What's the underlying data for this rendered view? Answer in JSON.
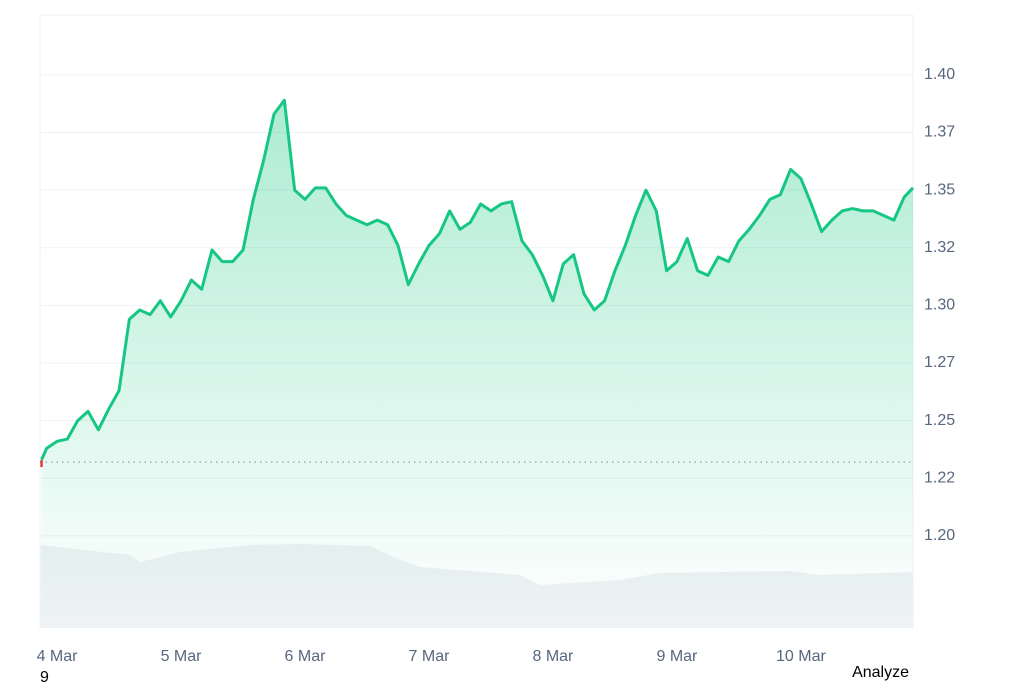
{
  "chart_data": {
    "type": "line",
    "series": [
      {
        "color": "#16c784",
        "x": [
          -3,
          -2,
          0,
          2,
          4,
          6,
          8,
          10,
          12,
          14,
          16,
          18,
          20,
          22,
          24,
          26,
          28,
          30,
          32,
          34,
          36,
          38,
          40,
          42,
          44,
          46,
          48,
          50,
          52,
          54,
          56,
          58,
          60,
          62,
          64,
          66,
          68,
          70,
          72,
          74,
          76,
          78,
          80,
          82,
          84,
          86,
          88,
          90,
          92,
          94,
          96,
          98,
          100,
          102,
          104,
          106,
          108,
          110,
          112,
          114,
          116,
          118,
          120,
          122,
          124,
          126,
          128,
          130,
          132,
          134,
          136,
          138,
          140,
          142,
          144,
          146,
          148,
          150,
          152,
          154,
          156,
          158,
          160,
          162,
          164,
          165.7
        ],
        "values": [
          1.233,
          1.238,
          1.241,
          1.242,
          1.25,
          1.254,
          1.246,
          1.255,
          1.263,
          1.294,
          1.298,
          1.296,
          1.302,
          1.295,
          1.302,
          1.311,
          1.307,
          1.324,
          1.319,
          1.319,
          1.324,
          1.346,
          1.363,
          1.383,
          1.389,
          1.35,
          1.346,
          1.351,
          1.351,
          1.344,
          1.339,
          1.337,
          1.335,
          1.337,
          1.335,
          1.326,
          1.309,
          1.318,
          1.326,
          1.331,
          1.341,
          1.333,
          1.336,
          1.344,
          1.341,
          1.344,
          1.345,
          1.328,
          1.322,
          1.313,
          1.302,
          1.318,
          1.322,
          1.305,
          1.298,
          1.302,
          1.315,
          1.326,
          1.339,
          1.35,
          1.341,
          1.315,
          1.319,
          1.329,
          1.315,
          1.313,
          1.321,
          1.319,
          1.328,
          1.333,
          1.339,
          1.346,
          1.348,
          1.359,
          1.355,
          1.344,
          1.332,
          1.337,
          1.341,
          1.342,
          1.341,
          1.341,
          1.339,
          1.337,
          1.347,
          1.351
        ]
      }
    ],
    "baseline": 1.232,
    "volume": {
      "color": "#eff2f5",
      "x": [
        -3.3,
        14.1,
        16.1,
        23.8,
        37.4,
        47.0,
        60.6,
        66.4,
        70.3,
        89.6,
        93.5,
        109,
        116.7,
        141.9,
        147.7,
        165.7
      ],
      "values": [
        83,
        73,
        66,
        76,
        83,
        84,
        82,
        68,
        61,
        53,
        43,
        48,
        55,
        57,
        53,
        56
      ]
    },
    "xlim": [
      -3.3,
      165.7
    ],
    "xticks": [
      {
        "value": 0,
        "label": "4 Mar"
      },
      {
        "value": 24,
        "label": "5 Mar"
      },
      {
        "value": 48,
        "label": "6 Mar"
      },
      {
        "value": 72,
        "label": "7 Mar"
      },
      {
        "value": 96,
        "label": "8 Mar"
      },
      {
        "value": 120,
        "label": "9 Mar"
      },
      {
        "value": 144,
        "label": "10 Mar"
      }
    ],
    "ylim": [
      1.16,
      1.426
    ],
    "yticks": [
      {
        "value": 1.2,
        "label": "1.20"
      },
      {
        "value": 1.225,
        "label": "1.22"
      },
      {
        "value": 1.25,
        "label": "1.25"
      },
      {
        "value": 1.275,
        "label": "1.27"
      },
      {
        "value": 1.3,
        "label": "1.30"
      },
      {
        "value": 1.325,
        "label": "1.32"
      },
      {
        "value": 1.35,
        "label": "1.35"
      },
      {
        "value": 1.375,
        "label": "1.37"
      },
      {
        "value": 1.4,
        "label": "1.40"
      }
    ],
    "grid": true,
    "footer_left": "9",
    "footer_right": "Analyze"
  }
}
